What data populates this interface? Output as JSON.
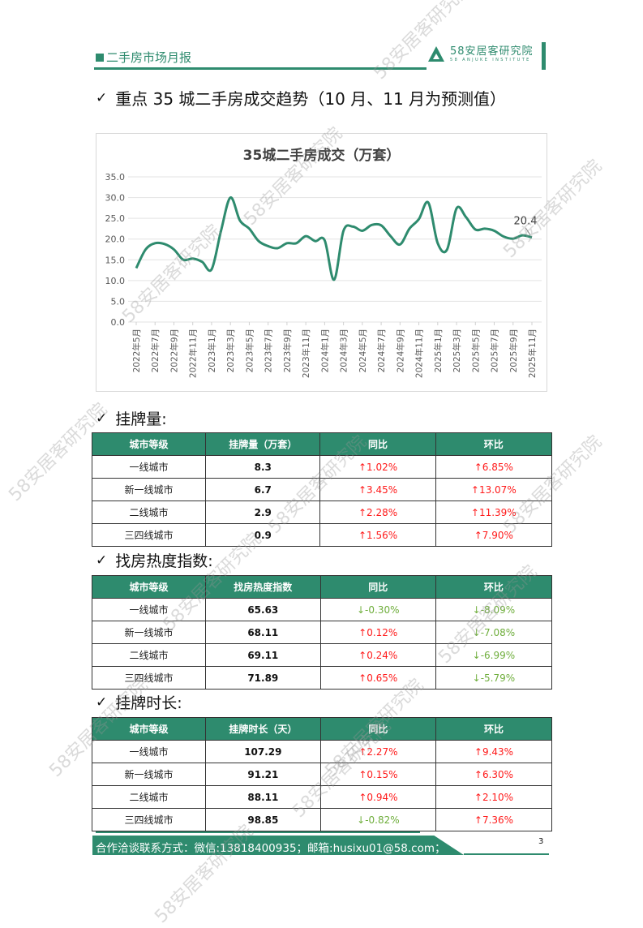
{
  "header": {
    "report_title": "二手房市场月报",
    "logo_cn": "58安居客研究院",
    "logo_en": "58 ANJUKE INSTITUTE"
  },
  "section_main": {
    "check": "✓",
    "title": "重点 35 城二手房成交趋势（10 月、11 月为预测值）"
  },
  "chart_data": {
    "type": "line",
    "title": "35城二手房成交（万套）",
    "xlabel": "",
    "ylabel": "",
    "ylim": [
      0,
      35
    ],
    "yticks": [
      "0.0",
      "5.0",
      "10.0",
      "15.0",
      "20.0",
      "25.0",
      "30.0",
      "35.0"
    ],
    "grid": true,
    "legend": "none",
    "line_color": "#2e8b6e",
    "tick_labels": [
      "2022年5月",
      "2022年7月",
      "2022年9月",
      "2022年11月",
      "2023年1月",
      "2023年3月",
      "2023年5月",
      "2023年7月",
      "2023年9月",
      "2023年11月",
      "2024年1月",
      "2024年3月",
      "2024年5月",
      "2024年7月",
      "2024年9月",
      "2024年11月",
      "2025年1月",
      "2025年3月",
      "2025年5月",
      "2025年7月",
      "2025年9月",
      "2025年11月"
    ],
    "x": [
      "2022年5月",
      "2022年6月",
      "2022年7月",
      "2022年8月",
      "2022年9月",
      "2022年10月",
      "2022年11月",
      "2022年12月",
      "2023年1月",
      "2023年2月",
      "2023年3月",
      "2023年4月",
      "2023年5月",
      "2023年6月",
      "2023年7月",
      "2023年8月",
      "2023年9月",
      "2023年10月",
      "2023年11月",
      "2023年12月",
      "2024年1月",
      "2024年2月",
      "2024年3月",
      "2024年4月",
      "2024年5月",
      "2024年6月",
      "2024年7月",
      "2024年8月",
      "2024年9月",
      "2024年10月",
      "2024年11月",
      "2024年12月",
      "2025年1月",
      "2025年2月",
      "2025年3月",
      "2025年4月",
      "2025年5月",
      "2025年6月",
      "2025年7月",
      "2025年8月",
      "2025年9月",
      "2025年10月",
      "2025年11月"
    ],
    "series": [
      {
        "name": "35城二手房成交（万套）",
        "values": [
          13.0,
          17.5,
          19.0,
          18.8,
          17.5,
          15.0,
          15.3,
          14.5,
          12.7,
          22.0,
          30.0,
          24.5,
          22.5,
          19.5,
          18.3,
          17.8,
          19.0,
          19.0,
          20.7,
          19.5,
          19.7,
          10.2,
          22.0,
          23.0,
          22.0,
          23.4,
          23.3,
          20.7,
          18.7,
          22.5,
          24.8,
          28.8,
          19.0,
          17.5,
          27.4,
          25.3,
          22.3,
          22.5,
          22.0,
          20.6,
          20.1,
          20.9,
          20.4
        ]
      }
    ],
    "annotations": [
      {
        "x": "2025年11月",
        "text": "20.4"
      }
    ]
  },
  "tables": [
    {
      "heading": "挂牌量:",
      "headers": [
        "城市等级",
        "挂牌量（万套）",
        "同比",
        "环比"
      ],
      "rows": [
        {
          "tier": "一线城市",
          "value": "8.3",
          "yoy": "↑1.02%",
          "yoy_dir": "up",
          "mom": "↑6.85%",
          "mom_dir": "up"
        },
        {
          "tier": "新一线城市",
          "value": "6.7",
          "yoy": "↑3.45%",
          "yoy_dir": "up",
          "mom": "↑13.07%",
          "mom_dir": "up"
        },
        {
          "tier": "二线城市",
          "value": "2.9",
          "yoy": "↑2.28%",
          "yoy_dir": "up",
          "mom": "↑11.39%",
          "mom_dir": "up"
        },
        {
          "tier": "三四线城市",
          "value": "0.9",
          "yoy": "↑1.56%",
          "yoy_dir": "up",
          "mom": "↑7.90%",
          "mom_dir": "up"
        }
      ]
    },
    {
      "heading": "找房热度指数:",
      "headers": [
        "城市等级",
        "找房热度指数",
        "同比",
        "环比"
      ],
      "rows": [
        {
          "tier": "一线城市",
          "value": "65.63",
          "yoy": "↓-0.30%",
          "yoy_dir": "down",
          "mom": "↓-8.09%",
          "mom_dir": "down"
        },
        {
          "tier": "新一线城市",
          "value": "68.11",
          "yoy": "↑0.12%",
          "yoy_dir": "up",
          "mom": "↓-7.08%",
          "mom_dir": "down"
        },
        {
          "tier": "二线城市",
          "value": "69.11",
          "yoy": "↑0.24%",
          "yoy_dir": "up",
          "mom": "↓-6.99%",
          "mom_dir": "down"
        },
        {
          "tier": "三四线城市",
          "value": "71.89",
          "yoy": "↑0.65%",
          "yoy_dir": "up",
          "mom": "↓-5.79%",
          "mom_dir": "down"
        }
      ]
    },
    {
      "heading": "挂牌时长:",
      "headers": [
        "城市等级",
        "挂牌时长（天）",
        "同比",
        "环比"
      ],
      "rows": [
        {
          "tier": "一线城市",
          "value": "107.29",
          "yoy": "↑2.27%",
          "yoy_dir": "up",
          "mom": "↑9.43%",
          "mom_dir": "up"
        },
        {
          "tier": "新一线城市",
          "value": "91.21",
          "yoy": "↑0.15%",
          "yoy_dir": "up",
          "mom": "↑6.30%",
          "mom_dir": "up"
        },
        {
          "tier": "二线城市",
          "value": "88.11",
          "yoy": "↑0.94%",
          "yoy_dir": "up",
          "mom": "↑2.10%",
          "mom_dir": "up"
        },
        {
          "tier": "三四线城市",
          "value": "98.85",
          "yoy": "↓-0.82%",
          "yoy_dir": "down",
          "mom": "↑7.36%",
          "mom_dir": "up"
        }
      ]
    }
  ],
  "footer": {
    "contact": "合作洽谈联系方式：微信:13818400935；邮箱:husixu01@58.com；",
    "page_number": "3"
  },
  "colors": {
    "brand_green": "#2e8b6e",
    "up_red": "#ff1a1a",
    "down_green": "#6fae3c"
  },
  "watermark": "58安居客研究院"
}
